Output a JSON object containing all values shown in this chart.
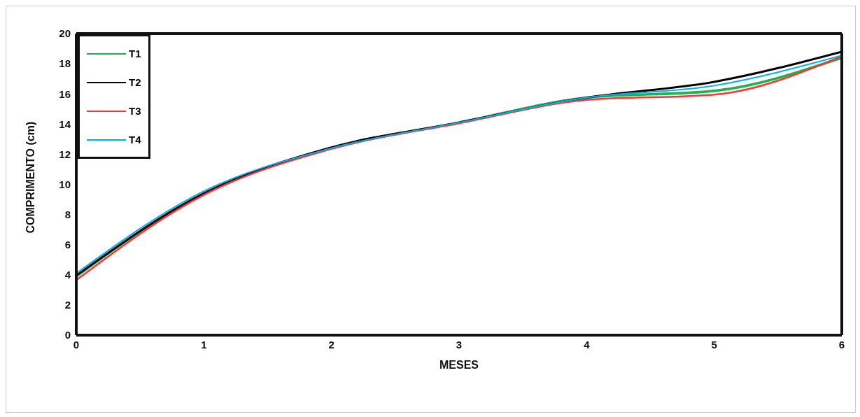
{
  "chart_data": {
    "type": "line",
    "xlabel": "MESES",
    "ylabel": "COMPRIMENTO (cm)",
    "x": [
      0,
      1,
      2,
      3,
      4,
      5,
      6
    ],
    "series": [
      {
        "name": "T1",
        "color": "#22b14c",
        "values": [
          3.9,
          9.4,
          12.4,
          14.1,
          15.75,
          16.2,
          18.4
        ]
      },
      {
        "name": "T2",
        "color": "#000000",
        "values": [
          3.95,
          9.4,
          12.45,
          14.1,
          15.75,
          16.8,
          18.8
        ]
      },
      {
        "name": "T3",
        "color": "#ff3333",
        "values": [
          3.65,
          9.3,
          12.35,
          14.05,
          15.6,
          15.95,
          18.5
        ]
      },
      {
        "name": "T4",
        "color": "#00b0f0",
        "values": [
          4.1,
          9.55,
          12.4,
          14.1,
          15.75,
          16.55,
          18.55
        ]
      }
    ],
    "xlim": [
      0,
      6
    ],
    "xticks": [
      0,
      1,
      2,
      3,
      4,
      5,
      6
    ],
    "ylim": [
      0,
      20
    ],
    "yticks": [
      0,
      2,
      4,
      6,
      8,
      10,
      12,
      14,
      16,
      18,
      20
    ],
    "legend": "top left",
    "marker": "none",
    "line_style": "solid"
  }
}
